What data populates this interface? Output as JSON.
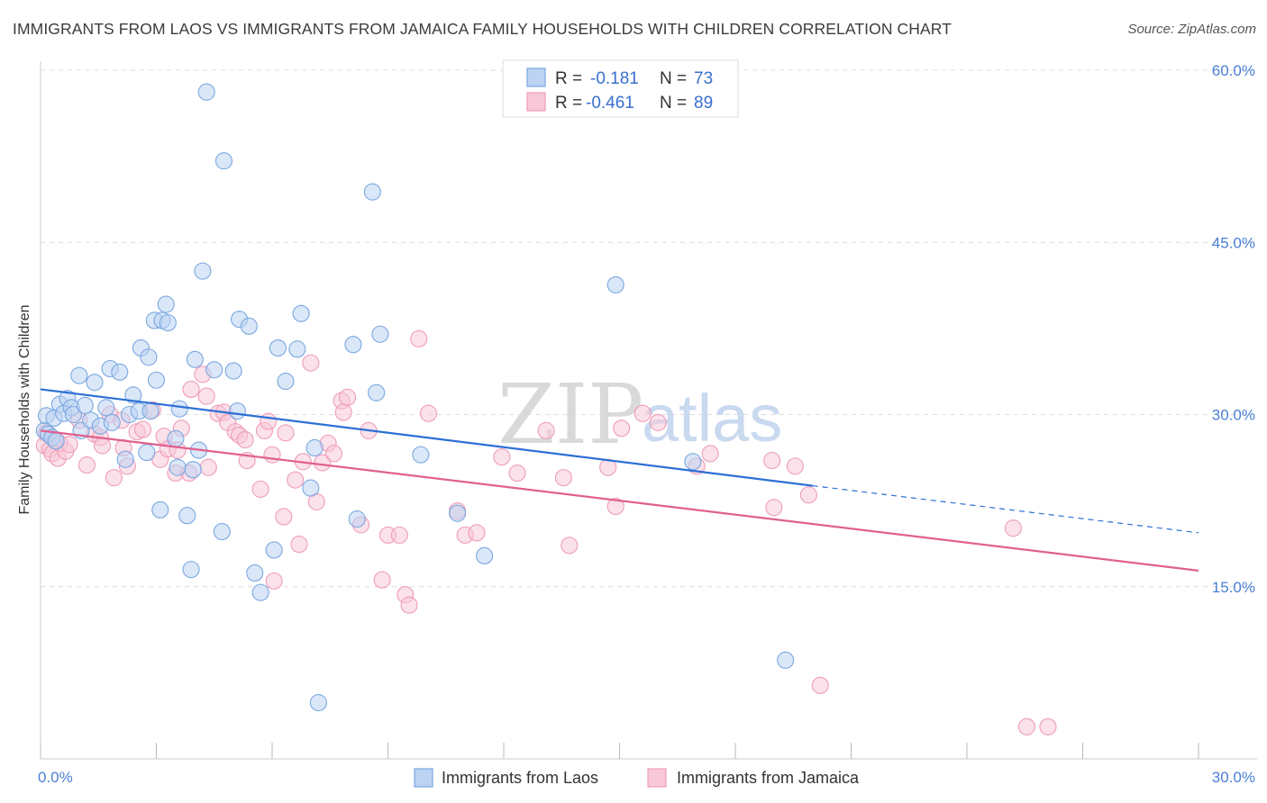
{
  "title": "IMMIGRANTS FROM LAOS VS IMMIGRANTS FROM JAMAICA FAMILY HOUSEHOLDS WITH CHILDREN CORRELATION CHART",
  "source": "Source: ZipAtlas.com",
  "watermark": {
    "zip": "ZIP",
    "atlas": "atlas"
  },
  "chart_data": {
    "type": "scatter",
    "title": "IMMIGRANTS FROM LAOS VS IMMIGRANTS FROM JAMAICA FAMILY HOUSEHOLDS WITH CHILDREN CORRELATION CHART",
    "xlabel": "",
    "ylabel": "Family Households with Children",
    "xlim": [
      0,
      30
    ],
    "ylim": [
      0,
      60
    ],
    "x_tick_labels": [
      {
        "value": 0,
        "label": "0.0%"
      },
      {
        "value": 30,
        "label": "30.0%"
      }
    ],
    "y_tick_labels": [
      {
        "value": 15,
        "label": "15.0%"
      },
      {
        "value": 30,
        "label": "30.0%"
      },
      {
        "value": 45,
        "label": "45.0%"
      },
      {
        "value": 60,
        "label": "60.0%"
      }
    ],
    "legend": {
      "placement": "top-center",
      "entries": [
        {
          "r_label": "R =",
          "r_value": "-0.181",
          "n_label": "N =",
          "n_value": "73"
        },
        {
          "r_label": "R =",
          "r_value": "-0.461",
          "n_label": "N =",
          "n_value": "89"
        }
      ]
    },
    "series": [
      {
        "name": "Immigrants from Laos",
        "color": "#7aa7e0",
        "fill": "#bcd3f2",
        "line_color": "#2b6fd6",
        "trend": {
          "x0": 0,
          "y0": 32.2,
          "x1": 20.0,
          "y1": 23.8,
          "dash_to_x": 30.0,
          "dash_to_y": 19.7
        },
        "points": [
          [
            0.1,
            28.6
          ],
          [
            0.15,
            29.9
          ],
          [
            0.2,
            28.3
          ],
          [
            0.3,
            28.0
          ],
          [
            0.35,
            29.7
          ],
          [
            0.4,
            27.7
          ],
          [
            0.5,
            30.9
          ],
          [
            0.6,
            30.1
          ],
          [
            0.7,
            31.4
          ],
          [
            0.8,
            30.6
          ],
          [
            0.85,
            30.0
          ],
          [
            1.0,
            33.4
          ],
          [
            1.05,
            28.6
          ],
          [
            1.15,
            30.8
          ],
          [
            1.3,
            29.5
          ],
          [
            1.4,
            32.8
          ],
          [
            1.55,
            29.0
          ],
          [
            1.7,
            30.6
          ],
          [
            1.8,
            34.0
          ],
          [
            1.85,
            29.3
          ],
          [
            2.05,
            33.7
          ],
          [
            2.2,
            26.1
          ],
          [
            2.3,
            30.0
          ],
          [
            2.4,
            31.7
          ],
          [
            2.55,
            30.3
          ],
          [
            2.6,
            35.8
          ],
          [
            2.75,
            26.7
          ],
          [
            2.8,
            35.0
          ],
          [
            2.85,
            30.3
          ],
          [
            2.95,
            38.2
          ],
          [
            3.0,
            33.0
          ],
          [
            3.1,
            21.7
          ],
          [
            3.15,
            38.2
          ],
          [
            3.25,
            39.6
          ],
          [
            3.3,
            38.0
          ],
          [
            3.5,
            27.9
          ],
          [
            3.55,
            25.4
          ],
          [
            3.6,
            30.5
          ],
          [
            3.8,
            21.2
          ],
          [
            3.9,
            16.5
          ],
          [
            3.95,
            25.2
          ],
          [
            4.0,
            34.8
          ],
          [
            4.1,
            26.9
          ],
          [
            4.2,
            42.5
          ],
          [
            4.3,
            58.1
          ],
          [
            4.5,
            33.9
          ],
          [
            4.7,
            19.8
          ],
          [
            4.75,
            52.1
          ],
          [
            5.0,
            33.8
          ],
          [
            5.1,
            30.3
          ],
          [
            5.15,
            38.3
          ],
          [
            5.4,
            37.7
          ],
          [
            5.55,
            16.2
          ],
          [
            5.7,
            14.5
          ],
          [
            6.05,
            18.2
          ],
          [
            6.15,
            35.8
          ],
          [
            6.35,
            32.9
          ],
          [
            6.65,
            35.7
          ],
          [
            6.75,
            38.8
          ],
          [
            7.0,
            23.6
          ],
          [
            7.1,
            27.1
          ],
          [
            7.2,
            4.9
          ],
          [
            8.1,
            36.1
          ],
          [
            8.2,
            20.9
          ],
          [
            8.6,
            49.4
          ],
          [
            8.7,
            31.9
          ],
          [
            8.8,
            37.0
          ],
          [
            9.85,
            26.5
          ],
          [
            10.8,
            21.4
          ],
          [
            11.5,
            17.7
          ],
          [
            14.9,
            41.3
          ],
          [
            16.9,
            25.9
          ],
          [
            19.3,
            8.6
          ]
        ]
      },
      {
        "name": "Immigrants from Jamaica",
        "color": "#ee9cb8",
        "fill": "#f8c8d8",
        "line_color": "#e0608e",
        "trend": {
          "x0": 0,
          "y0": 28.6,
          "x1": 30.0,
          "y1": 16.4
        }
      }
    ]
  },
  "bottom_legend": [
    {
      "label": "Immigrants from Laos"
    },
    {
      "label": "Immigrants from Jamaica"
    }
  ],
  "jamaica_points": [
    [
      0.1,
      27.3
    ],
    [
      0.15,
      28.4
    ],
    [
      0.25,
      27.0
    ],
    [
      0.3,
      26.6
    ],
    [
      0.45,
      26.2
    ],
    [
      0.5,
      27.5
    ],
    [
      0.65,
      26.8
    ],
    [
      0.75,
      27.4
    ],
    [
      1.0,
      29.5
    ],
    [
      1.2,
      25.6
    ],
    [
      1.4,
      28.3
    ],
    [
      1.55,
      28.0
    ],
    [
      1.6,
      27.3
    ],
    [
      1.8,
      30.0
    ],
    [
      1.9,
      24.5
    ],
    [
      2.1,
      29.5
    ],
    [
      2.15,
      27.1
    ],
    [
      2.25,
      25.5
    ],
    [
      2.5,
      28.5
    ],
    [
      2.65,
      28.7
    ],
    [
      2.9,
      30.4
    ],
    [
      3.1,
      26.1
    ],
    [
      3.2,
      28.1
    ],
    [
      3.3,
      27.0
    ],
    [
      3.5,
      24.9
    ],
    [
      3.55,
      26.9
    ],
    [
      3.65,
      28.8
    ],
    [
      3.85,
      24.9
    ],
    [
      3.9,
      32.2
    ],
    [
      4.2,
      33.5
    ],
    [
      4.3,
      31.6
    ],
    [
      4.35,
      25.4
    ],
    [
      4.6,
      30.1
    ],
    [
      4.75,
      30.2
    ],
    [
      4.85,
      29.3
    ],
    [
      5.05,
      28.5
    ],
    [
      5.15,
      28.2
    ],
    [
      5.3,
      27.8
    ],
    [
      5.35,
      26.0
    ],
    [
      5.7,
      23.5
    ],
    [
      5.8,
      28.6
    ],
    [
      5.9,
      29.4
    ],
    [
      6.0,
      26.5
    ],
    [
      6.05,
      15.5
    ],
    [
      6.3,
      21.1
    ],
    [
      6.35,
      28.4
    ],
    [
      6.6,
      24.3
    ],
    [
      6.7,
      18.7
    ],
    [
      6.8,
      25.9
    ],
    [
      7.0,
      34.5
    ],
    [
      7.15,
      22.4
    ],
    [
      7.3,
      25.8
    ],
    [
      7.45,
      27.5
    ],
    [
      7.6,
      26.6
    ],
    [
      7.8,
      31.2
    ],
    [
      7.85,
      30.2
    ],
    [
      7.95,
      31.5
    ],
    [
      8.3,
      20.4
    ],
    [
      8.5,
      28.6
    ],
    [
      8.85,
      15.6
    ],
    [
      9.0,
      19.5
    ],
    [
      9.3,
      19.5
    ],
    [
      9.45,
      14.3
    ],
    [
      9.55,
      13.4
    ],
    [
      9.8,
      36.6
    ],
    [
      10.05,
      30.1
    ],
    [
      10.8,
      21.6
    ],
    [
      11.0,
      19.5
    ],
    [
      11.3,
      19.7
    ],
    [
      11.95,
      26.3
    ],
    [
      12.35,
      24.9
    ],
    [
      13.1,
      28.6
    ],
    [
      13.55,
      24.5
    ],
    [
      13.7,
      18.6
    ],
    [
      14.7,
      25.4
    ],
    [
      14.9,
      22.0
    ],
    [
      15.05,
      28.8
    ],
    [
      15.6,
      30.1
    ],
    [
      16.0,
      29.3
    ],
    [
      17.0,
      25.5
    ],
    [
      17.35,
      26.6
    ],
    [
      18.95,
      26.0
    ],
    [
      19.0,
      21.9
    ],
    [
      19.55,
      25.5
    ],
    [
      19.9,
      23.0
    ],
    [
      20.2,
      6.4
    ],
    [
      25.2,
      20.1
    ],
    [
      25.55,
      2.8
    ],
    [
      26.1,
      2.8
    ]
  ]
}
